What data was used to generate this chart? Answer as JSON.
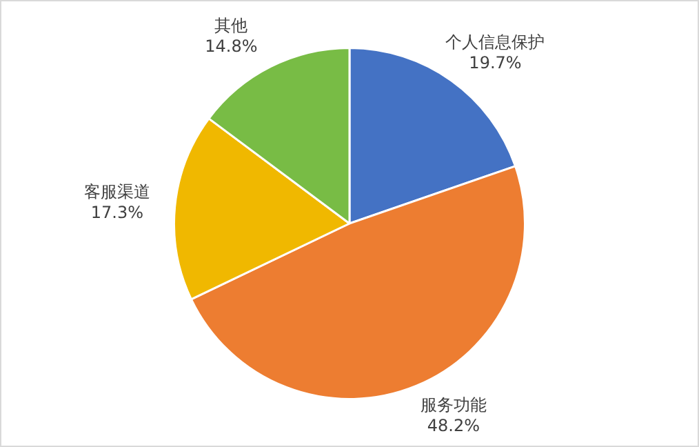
{
  "chart_data": {
    "type": "pie",
    "categories": [
      "个人信息保护",
      "服务功能",
      "客服渠道",
      "其他"
    ],
    "values": [
      19.7,
      48.2,
      17.3,
      14.8
    ],
    "value_labels": [
      "19.7%",
      "48.2%",
      "17.3%",
      "14.8%"
    ],
    "colors": [
      "#4472c4",
      "#ed7d31",
      "#f0b800",
      "#78bc45"
    ],
    "legend": false
  }
}
